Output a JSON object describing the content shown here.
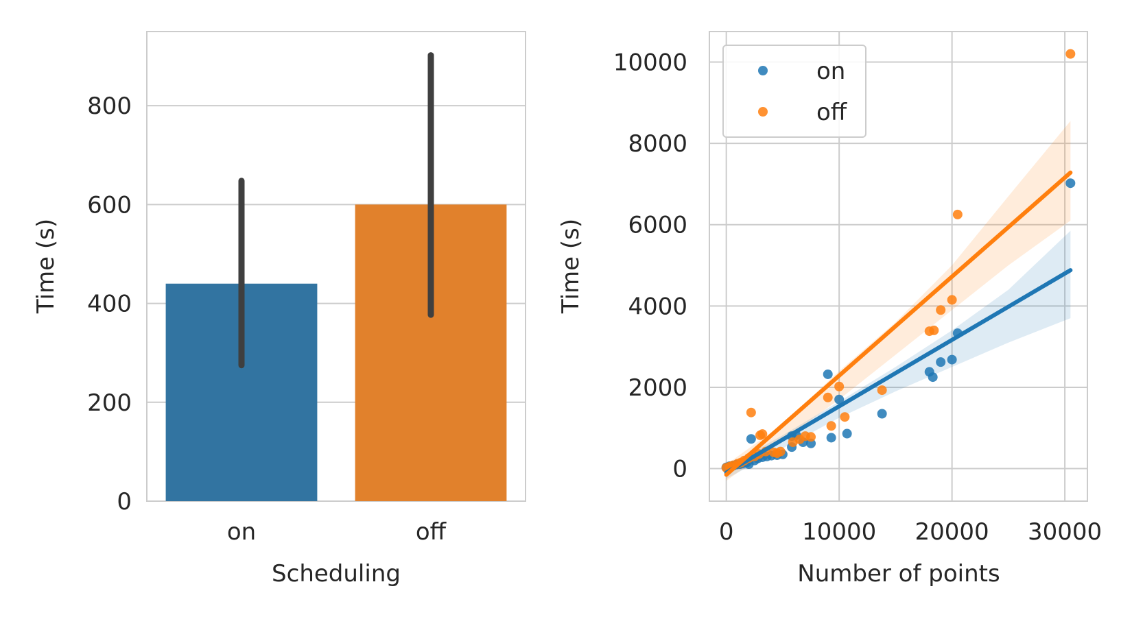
{
  "chart_data": [
    {
      "type": "bar",
      "xlabel": "Scheduling",
      "ylabel": "Time (s)",
      "categories": [
        "on",
        "off"
      ],
      "values": [
        440,
        600
      ],
      "error_bars": [
        [
          275,
          648
        ],
        [
          377,
          902
        ]
      ],
      "colors": [
        "#3274a1",
        "#e1812c"
      ],
      "errorbar_color": "#3f3f3f",
      "ylim": [
        0,
        950
      ],
      "yticks": [
        0,
        200,
        400,
        600,
        800
      ],
      "grid": true
    },
    {
      "type": "scatter",
      "xlabel": "Number of points",
      "ylabel": "Time (s)",
      "xlim": [
        -1500,
        32000
      ],
      "ylim": [
        -800,
        10750
      ],
      "xticks": [
        0,
        10000,
        20000,
        30000
      ],
      "yticks": [
        0,
        2000,
        4000,
        6000,
        8000,
        10000
      ],
      "grid": true,
      "legend_position": "top-left",
      "series": [
        {
          "name": "on",
          "color": "#1f77b4",
          "points": [
            [
              0,
              30
            ],
            [
              300,
              60
            ],
            [
              600,
              70
            ],
            [
              900,
              100
            ],
            [
              1200,
              110
            ],
            [
              1500,
              130
            ],
            [
              1800,
              150
            ],
            [
              2000,
              110
            ],
            [
              2200,
              730
            ],
            [
              2500,
              200
            ],
            [
              2800,
              250
            ],
            [
              3200,
              280
            ],
            [
              3600,
              300
            ],
            [
              4000,
              320
            ],
            [
              4500,
              330
            ],
            [
              5000,
              350
            ],
            [
              5800,
              530
            ],
            [
              5800,
              800
            ],
            [
              6200,
              820
            ],
            [
              6800,
              650
            ],
            [
              7500,
              620
            ],
            [
              9000,
              2320
            ],
            [
              9300,
              760
            ],
            [
              10000,
              1700
            ],
            [
              10700,
              860
            ],
            [
              13800,
              1350
            ],
            [
              18000,
              2380
            ],
            [
              18300,
              2250
            ],
            [
              19000,
              2620
            ],
            [
              20000,
              2680
            ],
            [
              20500,
              3330
            ],
            [
              30500,
              7020
            ]
          ],
          "fit": {
            "x": [
              0,
              30500
            ],
            "y": [
              -100,
              4880
            ]
          },
          "ci": {
            "x": [
              0,
              5000,
              10000,
              15000,
              20000,
              25000,
              30500
            ],
            "lower": [
              -250,
              500,
              1250,
              1900,
              2500,
              3100,
              3700
            ],
            "upper": [
              50,
              820,
              1650,
              2500,
              3400,
              4400,
              5850
            ]
          }
        },
        {
          "name": "off",
          "color": "#ff7f0e",
          "points": [
            [
              0,
              20
            ],
            [
              300,
              50
            ],
            [
              600,
              80
            ],
            [
              1000,
              120
            ],
            [
              1300,
              150
            ],
            [
              1600,
              200
            ],
            [
              2000,
              260
            ],
            [
              2200,
              1380
            ],
            [
              2500,
              300
            ],
            [
              2900,
              360
            ],
            [
              3000,
              820
            ],
            [
              3200,
              850
            ],
            [
              3500,
              420
            ],
            [
              4200,
              400
            ],
            [
              4500,
              380
            ],
            [
              4800,
              420
            ],
            [
              5900,
              650
            ],
            [
              6500,
              720
            ],
            [
              7000,
              800
            ],
            [
              7500,
              780
            ],
            [
              9000,
              1750
            ],
            [
              9300,
              1050
            ],
            [
              10000,
              2020
            ],
            [
              10500,
              1270
            ],
            [
              13800,
              1930
            ],
            [
              18000,
              3380
            ],
            [
              18400,
              3400
            ],
            [
              19000,
              3900
            ],
            [
              20000,
              4150
            ],
            [
              20500,
              6250
            ],
            [
              30500,
              10200
            ]
          ],
          "fit": {
            "x": [
              0,
              30500
            ],
            "y": [
              -150,
              7280
            ]
          },
          "ci": {
            "x": [
              0,
              5000,
              10000,
              15000,
              20000,
              25000,
              30500
            ],
            "lower": [
              -300,
              700,
              1700,
              2800,
              3900,
              5000,
              6100
            ],
            "upper": [
              100,
              1100,
              2400,
              3600,
              5000,
              6700,
              8550
            ]
          }
        }
      ]
    }
  ]
}
